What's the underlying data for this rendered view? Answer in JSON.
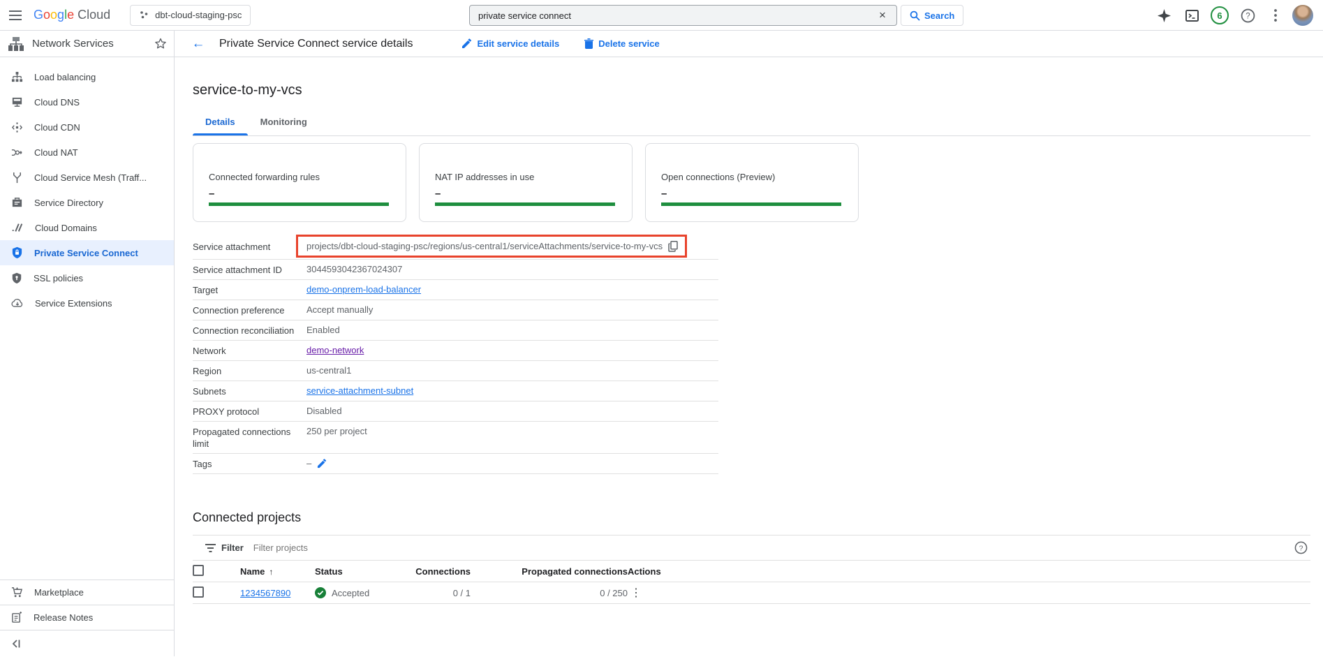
{
  "topbar": {
    "logo_google": "Google",
    "logo_cloud": "Cloud",
    "project_selector": "dbt-cloud-staging-psc",
    "search": {
      "value": "private service connect",
      "button_label": "Search"
    },
    "notification_count": "6",
    "icons": [
      "gemini-sparkle-icon",
      "cloud-shell-icon",
      "notifications-badge",
      "help-icon",
      "more-vert-icon",
      "avatar"
    ]
  },
  "sidebar": {
    "title": "Network Services",
    "items": [
      {
        "label": "Load balancing",
        "icon": "load-balancing-icon",
        "selected": false
      },
      {
        "label": "Cloud DNS",
        "icon": "cloud-dns-icon",
        "selected": false
      },
      {
        "label": "Cloud CDN",
        "icon": "cloud-cdn-icon",
        "selected": false
      },
      {
        "label": "Cloud NAT",
        "icon": "cloud-nat-icon",
        "selected": false
      },
      {
        "label": "Cloud Service Mesh (Traff...",
        "icon": "service-mesh-icon",
        "selected": false
      },
      {
        "label": "Service Directory",
        "icon": "service-directory-icon",
        "selected": false
      },
      {
        "label": "Cloud Domains",
        "icon": "cloud-domains-icon",
        "selected": false
      },
      {
        "label": "Private Service Connect",
        "icon": "shield-lock-icon",
        "selected": true
      },
      {
        "label": "SSL policies",
        "icon": "shield-key-icon",
        "selected": false
      },
      {
        "label": "Service Extensions",
        "icon": "cloud-arrow-icon",
        "selected": false
      }
    ],
    "footer_items": [
      {
        "label": "Marketplace",
        "icon": "marketplace-cart-icon"
      },
      {
        "label": "Release Notes",
        "icon": "release-notes-icon"
      }
    ]
  },
  "header": {
    "title": "Private Service Connect service details",
    "edit_label": "Edit service details",
    "delete_label": "Delete service"
  },
  "page": {
    "title": "service-to-my-vcs",
    "tabs": [
      {
        "label": "Details",
        "selected": true
      },
      {
        "label": "Monitoring",
        "selected": false
      }
    ],
    "cards": [
      {
        "title": "Connected forwarding rules",
        "value": "–"
      },
      {
        "title": "NAT IP addresses in use",
        "value": "–"
      },
      {
        "title": "Open connections (Preview)",
        "value": "–"
      }
    ],
    "details": [
      {
        "label": "Service attachment",
        "value": "projects/dbt-cloud-staging-psc/regions/us-central1/serviceAttachments/service-to-my-vcs",
        "type": "highlight-copy"
      },
      {
        "label": "Service attachment ID",
        "value": "3044593042367024307",
        "type": "text"
      },
      {
        "label": "Target",
        "value": "demo-onprem-load-balancer",
        "type": "link"
      },
      {
        "label": "Connection preference",
        "value": "Accept manually",
        "type": "text"
      },
      {
        "label": "Connection reconciliation",
        "value": "Enabled",
        "type": "text"
      },
      {
        "label": "Network",
        "value": "demo-network",
        "type": "link-visited"
      },
      {
        "label": "Region",
        "value": "us-central1",
        "type": "text"
      },
      {
        "label": "Subnets",
        "value": "service-attachment-subnet",
        "type": "link"
      },
      {
        "label": "PROXY protocol",
        "value": "Disabled",
        "type": "text"
      },
      {
        "label": "Propagated connections limit",
        "value": "250 per project",
        "type": "text"
      },
      {
        "label": "Tags",
        "value": "–",
        "type": "editable"
      }
    ],
    "connected_projects": {
      "title": "Connected projects",
      "filter_label": "Filter",
      "filter_placeholder": "Filter projects",
      "columns": [
        "Name",
        "Status",
        "Connections",
        "Propagated connections",
        "Actions"
      ],
      "rows": [
        {
          "name": "1234567890",
          "status": "Accepted",
          "connections": "0 / 1",
          "propagated": "0 / 250"
        }
      ]
    }
  },
  "colors": {
    "accent_blue": "#1a73e8",
    "selected_blue": "#1967d2",
    "selected_bg": "#e8f0fe",
    "green_bar": "#1e8e3e",
    "status_green": "#188038",
    "annotation_red": "#e8432c",
    "visited_link": "#681da8"
  }
}
